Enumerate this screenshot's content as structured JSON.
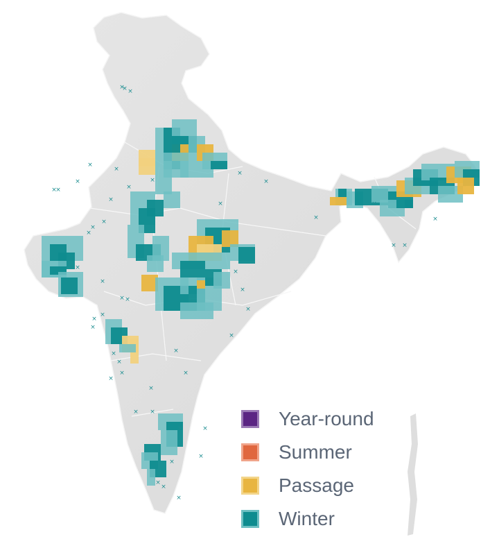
{
  "map": {
    "categories": [
      {
        "key": "year_round",
        "label": "Year-round",
        "fill": "#5b2583",
        "stroke": "#9a79b5"
      },
      {
        "key": "summer",
        "label": "Summer",
        "fill": "#e0673f",
        "stroke": "#f0a48a"
      },
      {
        "key": "passage",
        "label": "Passage",
        "fill": "#e8b540",
        "stroke": "#f3d58a"
      },
      {
        "key": "winter",
        "label": "Winter",
        "fill": "#0e8c8f",
        "stroke": "#6cc0c2"
      }
    ],
    "colors": {
      "land": "#e1e1e1",
      "land_shade": "#cfcfcf",
      "ocean": "#ffffff",
      "boundary": "#f7f7f7",
      "winter_light": "#6fc0c3",
      "winter_dark": "#0e8c8f",
      "passage": "#e8b540",
      "passage_light": "#f1d17e",
      "record_marker": "#1f8f92"
    }
  }
}
